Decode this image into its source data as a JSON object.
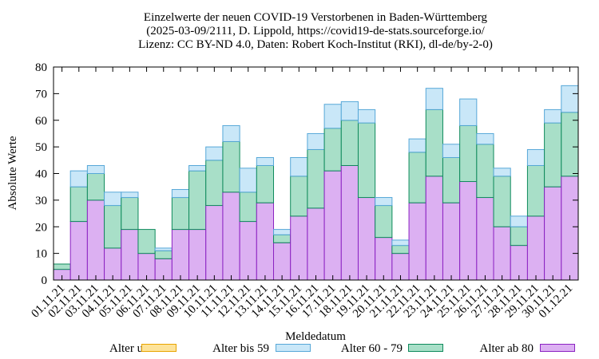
{
  "chart_data": {
    "type": "bar",
    "stacked": true,
    "title": [
      "Einzelwerte der neuen COVID-19 Verstorbenen in Baden-Württemberg",
      "(2025-03-09/2111, D. Lippold, https://covid19-de-stats.sourceforge.io/",
      "Lizenz: CC BY-ND 4.0, Daten: Robert Koch-Institut (RKI), dl-de/by-2-0)"
    ],
    "xlabel": "Meldedatum",
    "ylabel": "Absolute Werte",
    "ylim": [
      0,
      80
    ],
    "yticks": [
      0,
      10,
      20,
      30,
      40,
      50,
      60,
      70,
      80
    ],
    "categories": [
      "01.11.21",
      "02.11.21",
      "03.11.21",
      "04.11.21",
      "05.11.21",
      "06.11.21",
      "07.11.21",
      "08.11.21",
      "09.11.21",
      "10.11.21",
      "11.11.21",
      "12.11.21",
      "13.11.21",
      "14.11.21",
      "15.11.21",
      "16.11.21",
      "17.11.21",
      "18.11.21",
      "19.11.21",
      "20.11.21",
      "21.11.21",
      "22.11.21",
      "23.11.21",
      "24.11.21",
      "25.11.21",
      "26.11.21",
      "27.11.21",
      "28.11.21",
      "29.11.21",
      "30.11.21",
      "01.12.21"
    ],
    "series": [
      {
        "name": "Alter unbek.",
        "fill": "#fde39a",
        "stroke": "#e8a400",
        "values": [
          0,
          0,
          0,
          0,
          0,
          0,
          0,
          0,
          0,
          0,
          0,
          0,
          0,
          0,
          0,
          0,
          0,
          0,
          0,
          0,
          0,
          0,
          0,
          0,
          0,
          0,
          0,
          0,
          0,
          0,
          0
        ]
      },
      {
        "name": "Alter ab 80",
        "fill": "#dcb0f2",
        "stroke": "#8b22c2",
        "values": [
          4,
          22,
          30,
          12,
          19,
          10,
          8,
          19,
          19,
          28,
          33,
          22,
          29,
          14,
          24,
          27,
          41,
          43,
          31,
          16,
          10,
          29,
          39,
          29,
          37,
          31,
          20,
          13,
          24,
          35,
          39
        ]
      },
      {
        "name": "Alter 60 - 79",
        "fill": "#a8dfc8",
        "stroke": "#0f8a5c",
        "values": [
          2,
          13,
          10,
          16,
          12,
          9,
          3,
          12,
          22,
          17,
          19,
          11,
          14,
          3,
          15,
          22,
          16,
          17,
          28,
          12,
          3,
          19,
          25,
          17,
          21,
          20,
          19,
          7,
          19,
          24,
          24
        ]
      },
      {
        "name": "Alter bis 59",
        "fill": "#c9e7f8",
        "stroke": "#57a8d8",
        "values": [
          0,
          6,
          3,
          5,
          2,
          0,
          1,
          3,
          2,
          5,
          6,
          9,
          3,
          2,
          7,
          6,
          9,
          7,
          5,
          3,
          2,
          5,
          8,
          5,
          10,
          4,
          3,
          4,
          6,
          5,
          10
        ]
      }
    ],
    "legend": {
      "placement": "bottom",
      "order": [
        "Alter unbek.",
        "Alter bis 59",
        "Alter 60 - 79",
        "Alter ab 80"
      ]
    },
    "grid": false
  }
}
